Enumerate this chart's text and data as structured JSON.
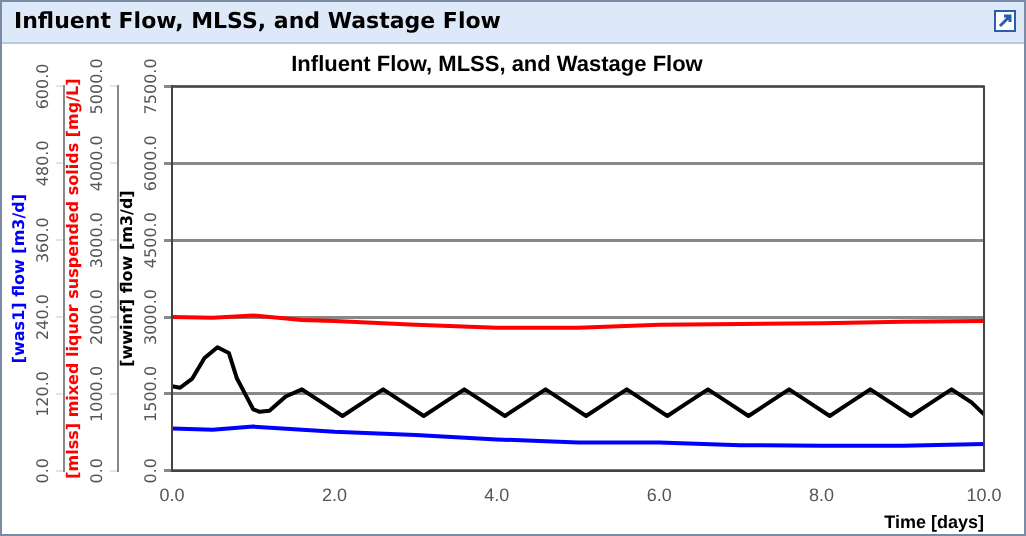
{
  "chart_data": {
    "type": "line",
    "title": "Influent Flow, MLSS, and Wastage Flow",
    "xlabel": "Time [days]",
    "ylabel": "[wwinf] flow [m3/d]",
    "y2label": "[mlss] mixed liquor suspended solids [mg/L]",
    "y3label": "[was1] flow [m3/d]",
    "xlim": [
      0,
      10
    ],
    "xticks": [
      {
        "value": 0,
        "label": "0.0"
      },
      {
        "value": 2,
        "label": "2.0"
      },
      {
        "value": 4,
        "label": "4.0"
      },
      {
        "value": 6,
        "label": "6.0"
      },
      {
        "value": 8,
        "label": "8.0"
      },
      {
        "value": 10,
        "label": "10.0"
      }
    ],
    "ylim": [
      0,
      7500
    ],
    "yticks": [
      {
        "value": 0,
        "label": "0.0"
      },
      {
        "value": 1500,
        "label": "1500.0"
      },
      {
        "value": 3000,
        "label": "3000.0"
      },
      {
        "value": 4500,
        "label": "4500.0"
      },
      {
        "value": 6000,
        "label": "6000.0"
      },
      {
        "value": 7500,
        "label": "7500.0"
      }
    ],
    "y2lim": [
      0,
      5000
    ],
    "y2ticks": [
      {
        "value": 0,
        "label": "0.0"
      },
      {
        "value": 1000,
        "label": "1000.0"
      },
      {
        "value": 2000,
        "label": "2000.0"
      },
      {
        "value": 3000,
        "label": "3000.0"
      },
      {
        "value": 4000,
        "label": "4000.0"
      },
      {
        "value": 5000,
        "label": "5000.0"
      }
    ],
    "y3lim": [
      0,
      600
    ],
    "y3ticks": [
      {
        "value": 0,
        "label": "0.0"
      },
      {
        "value": 120,
        "label": "120.0"
      },
      {
        "value": 240,
        "label": "240.0"
      },
      {
        "value": 360,
        "label": "360.0"
      },
      {
        "value": 480,
        "label": "480.0"
      },
      {
        "value": 600,
        "label": "600.0"
      }
    ],
    "grid": "y",
    "legend": false,
    "marker": "none",
    "line_style": "solid",
    "series": [
      {
        "color": "#000000",
        "x": [
          0,
          0.1,
          0.25,
          0.4,
          0.56,
          0.7,
          0.8,
          0.9,
          1.0,
          1.08,
          1.2,
          1.4,
          1.6,
          1.85,
          2.1,
          2.35,
          2.6,
          2.85,
          3.1,
          3.35,
          3.6,
          3.85,
          4.1,
          4.35,
          4.6,
          4.85,
          5.1,
          5.35,
          5.6,
          5.85,
          6.1,
          6.35,
          6.6,
          6.85,
          7.1,
          7.35,
          7.6,
          7.85,
          8.1,
          8.35,
          8.6,
          8.85,
          9.1,
          9.35,
          9.6,
          9.85,
          10
        ],
        "values": [
          1650,
          1620,
          1800,
          2200,
          2410,
          2300,
          1800,
          1500,
          1200,
          1150,
          1170,
          1450,
          1590,
          1330,
          1070,
          1330,
          1590,
          1330,
          1070,
          1330,
          1590,
          1330,
          1070,
          1330,
          1590,
          1330,
          1070,
          1330,
          1590,
          1330,
          1070,
          1330,
          1590,
          1330,
          1070,
          1330,
          1590,
          1330,
          1070,
          1330,
          1590,
          1330,
          1070,
          1330,
          1590,
          1330,
          1100
        ]
      },
      {
        "color": "#ff0000",
        "axis": "y2",
        "x": [
          0,
          0.5,
          1,
          1.6,
          2,
          3,
          4,
          5,
          6,
          7,
          8,
          9,
          10
        ],
        "values": [
          2000,
          1990,
          2020,
          1960,
          1950,
          1900,
          1860,
          1860,
          1900,
          1910,
          1920,
          1940,
          1950
        ]
      },
      {
        "color": "#0000ff",
        "axis": "y3",
        "x": [
          0,
          0.5,
          1,
          2,
          3,
          4,
          5,
          6,
          7,
          8,
          9,
          10
        ],
        "values": [
          66,
          64,
          69,
          61,
          56,
          49,
          44,
          44,
          40,
          39,
          39,
          42
        ]
      }
    ]
  }
}
